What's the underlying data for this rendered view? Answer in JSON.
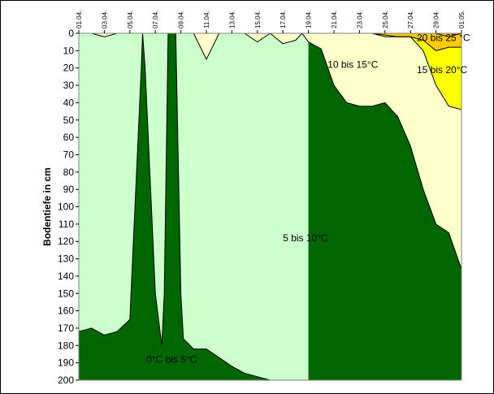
{
  "chart_data": {
    "type": "area",
    "title": "",
    "ylabel": "Bodentiefe in cm",
    "xlabel": "",
    "ylim": [
      0,
      200
    ],
    "y_inverted": true,
    "y_ticks": [
      0,
      10,
      20,
      30,
      40,
      50,
      60,
      70,
      80,
      90,
      100,
      110,
      120,
      130,
      140,
      150,
      160,
      170,
      180,
      190,
      200
    ],
    "x_ticks": [
      "01.04.",
      "03.04.",
      "05.04.",
      "07.04.",
      "09.04.",
      "11.04.",
      "13.04.",
      "15.04.",
      "17.04.",
      "19.04.",
      "21.04.",
      "23.04.",
      "25.04.",
      "27.04.",
      "29.04.",
      "01.05."
    ],
    "x_range_days": [
      0,
      30
    ],
    "grid": false,
    "legend": "none",
    "colors": {
      "zone_0_5": "#006600",
      "zone_5_10": "#ccffcc",
      "zone_10_15": "#ffffcc",
      "zone_15_20": "#ffff00",
      "zone_20_25": "#ffcc00",
      "boundary_line": "#000000"
    },
    "zones": [
      {
        "name": "0°C bis 5°C",
        "color_key": "zone_0_5"
      },
      {
        "name": "5 bis 10°C",
        "color_key": "zone_5_10"
      },
      {
        "name": "10 bis 15°C",
        "color_key": "zone_10_15"
      },
      {
        "name": "15 bis 20°C",
        "color_key": "zone_15_20"
      },
      {
        "name": "20 bis 25 °C",
        "color_key": "zone_20_25"
      }
    ],
    "isolines": {
      "5C": {
        "x": [
          0,
          1,
          2,
          3,
          4,
          4.9,
          5,
          5.2,
          6,
          6.5,
          6.7,
          7,
          7.3,
          7.6,
          8,
          8.2,
          9,
          10,
          11,
          12,
          13,
          14,
          15,
          16,
          17,
          17.5,
          18
        ],
        "y": [
          172,
          170,
          174,
          172,
          165,
          20,
          0,
          20,
          150,
          180,
          150,
          0,
          0,
          0,
          150,
          176,
          182,
          182,
          187,
          192,
          196,
          198,
          200,
          200,
          200,
          200,
          200
        ]
      },
      "10C": {
        "x": [
          0,
          1,
          2,
          3,
          4,
          5,
          6,
          7,
          8,
          9,
          10,
          11,
          12,
          13,
          14,
          15,
          16,
          17,
          17.5,
          18,
          19,
          20,
          21,
          22,
          23,
          24,
          25,
          26,
          27,
          28,
          29,
          30
        ],
        "y": [
          0,
          0,
          2,
          0,
          0,
          0,
          0,
          0,
          0,
          0,
          15,
          0,
          0,
          0,
          5,
          0,
          6,
          4,
          0,
          5,
          9,
          30,
          40,
          42,
          42,
          40,
          48,
          65,
          90,
          110,
          115,
          136
        ]
      },
      "15C": {
        "x": [
          20,
          21,
          22,
          23,
          24,
          25,
          26,
          27,
          28,
          29,
          30
        ],
        "y": [
          0,
          0,
          0,
          0,
          2,
          2,
          2,
          10,
          30,
          42,
          44
        ]
      },
      "20C": {
        "x": [
          23,
          24,
          25,
          26,
          27,
          28,
          29,
          30
        ],
        "y": [
          0,
          1,
          2,
          2,
          4,
          10,
          8,
          8
        ]
      },
      "25C": {
        "x": [
          25,
          26,
          27,
          28,
          29,
          30
        ],
        "y": [
          0,
          0,
          0,
          0,
          2,
          0
        ]
      }
    }
  }
}
